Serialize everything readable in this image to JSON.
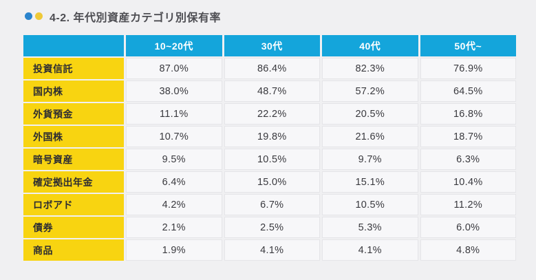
{
  "title": {
    "text": "4-2. 年代別資産カテゴリ別保有率"
  },
  "icons": {
    "blue_dot": "bullet-dot",
    "yellow_dot": "bullet-dot"
  },
  "colors": {
    "page_bg": "#f0f0f2",
    "header_bg": "#14a5db",
    "label_bg": "#f8d411",
    "cell_bg": "#f7f7f9",
    "cell_border": "#e5e5e8",
    "title_dot_blue": "#2b84cd",
    "title_dot_yellow": "#eec939",
    "header_text": "#ffffff",
    "body_text": "#39393e"
  },
  "table": {
    "corner_label": "",
    "columns": [
      "10~20代",
      "30代",
      "40代",
      "50代~"
    ],
    "rows": [
      {
        "label": "投資信託",
        "values": [
          "87.0%",
          "86.4%",
          "82.3%",
          "76.9%"
        ]
      },
      {
        "label": "国内株",
        "values": [
          "38.0%",
          "48.7%",
          "57.2%",
          "64.5%"
        ]
      },
      {
        "label": "外貨預金",
        "values": [
          "11.1%",
          "22.2%",
          "20.5%",
          "16.8%"
        ]
      },
      {
        "label": "外国株",
        "values": [
          "10.7%",
          "19.8%",
          "21.6%",
          "18.7%"
        ]
      },
      {
        "label": "暗号資産",
        "values": [
          "9.5%",
          "10.5%",
          "9.7%",
          "6.3%"
        ]
      },
      {
        "label": "確定拠出年金",
        "values": [
          "6.4%",
          "15.0%",
          "15.1%",
          "10.4%"
        ]
      },
      {
        "label": "ロボアド",
        "values": [
          "4.2%",
          "6.7%",
          "10.5%",
          "11.2%"
        ]
      },
      {
        "label": "債券",
        "values": [
          "2.1%",
          "2.5%",
          "5.3%",
          "6.0%"
        ]
      },
      {
        "label": "商品",
        "values": [
          "1.9%",
          "4.1%",
          "4.1%",
          "4.8%"
        ]
      }
    ]
  },
  "chart_data": {
    "type": "table",
    "title": "4-2. 年代別資産カテゴリ別保有率",
    "unit": "%",
    "columns": [
      "10~20代",
      "30代",
      "40代",
      "50代~"
    ],
    "categories": [
      "投資信託",
      "国内株",
      "外貨預金",
      "外国株",
      "暗号資産",
      "確定拠出年金",
      "ロボアド",
      "債券",
      "商品"
    ],
    "series": [
      {
        "name": "10~20代",
        "values": [
          87.0,
          38.0,
          11.1,
          10.7,
          9.5,
          6.4,
          4.2,
          2.1,
          1.9
        ]
      },
      {
        "name": "30代",
        "values": [
          86.4,
          48.7,
          22.2,
          19.8,
          10.5,
          15.0,
          6.7,
          2.5,
          4.1
        ]
      },
      {
        "name": "40代",
        "values": [
          82.3,
          57.2,
          20.5,
          21.6,
          9.7,
          15.1,
          10.5,
          5.3,
          4.1
        ]
      },
      {
        "name": "50代~",
        "values": [
          76.9,
          64.5,
          16.8,
          18.7,
          6.3,
          10.4,
          11.2,
          6.0,
          4.8
        ]
      }
    ]
  }
}
